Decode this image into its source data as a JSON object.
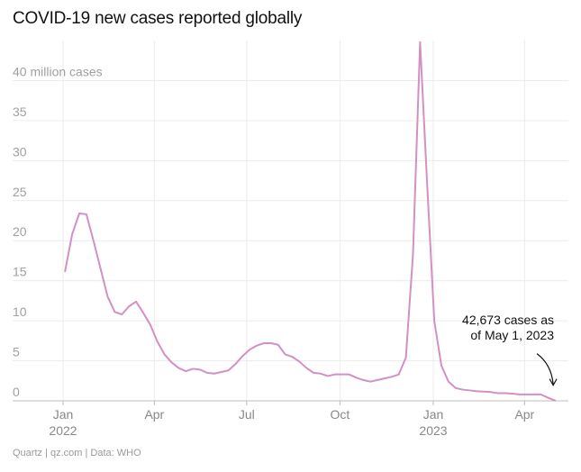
{
  "title": "COVID-19 new cases reported globally",
  "source": "Quartz | qz.com | Data: WHO",
  "chart_data": {
    "type": "line",
    "title": "COVID-19 new cases reported globally",
    "y_unit_label": "40 million cases",
    "y_ticks": [
      0,
      5,
      10,
      15,
      20,
      25,
      30,
      35,
      40
    ],
    "y_tick_labels": [
      "0",
      "5",
      "10",
      "15",
      "20",
      "25",
      "30",
      "35",
      "40 million cases"
    ],
    "ylim": [
      0,
      45
    ],
    "xlim": [
      "2022-01-01",
      "2023-05-08"
    ],
    "x_ticks": [
      {
        "date": "2022-01-01",
        "label": "Jan",
        "sublabel": "2022"
      },
      {
        "date": "2022-04-01",
        "label": "Apr",
        "sublabel": ""
      },
      {
        "date": "2022-07-01",
        "label": "Jul",
        "sublabel": ""
      },
      {
        "date": "2022-10-01",
        "label": "Oct",
        "sublabel": ""
      },
      {
        "date": "2023-01-01",
        "label": "Jan",
        "sublabel": "2023"
      },
      {
        "date": "2023-04-01",
        "label": "Apr",
        "sublabel": ""
      }
    ],
    "grid": true,
    "line_color": "#d48fc4",
    "series": [
      {
        "name": "",
        "x": [
          "2022-01-03",
          "2022-01-10",
          "2022-01-17",
          "2022-01-24",
          "2022-01-31",
          "2022-02-07",
          "2022-02-14",
          "2022-02-21",
          "2022-02-28",
          "2022-03-07",
          "2022-03-14",
          "2022-03-21",
          "2022-03-28",
          "2022-04-04",
          "2022-04-11",
          "2022-04-18",
          "2022-04-25",
          "2022-05-02",
          "2022-05-09",
          "2022-05-16",
          "2022-05-23",
          "2022-05-30",
          "2022-06-06",
          "2022-06-13",
          "2022-06-20",
          "2022-06-27",
          "2022-07-04",
          "2022-07-11",
          "2022-07-18",
          "2022-07-25",
          "2022-08-01",
          "2022-08-08",
          "2022-08-15",
          "2022-08-22",
          "2022-08-29",
          "2022-09-05",
          "2022-09-12",
          "2022-09-19",
          "2022-09-26",
          "2022-10-03",
          "2022-10-10",
          "2022-10-17",
          "2022-10-24",
          "2022-10-31",
          "2022-11-07",
          "2022-11-14",
          "2022-11-21",
          "2022-11-28",
          "2022-12-05",
          "2022-12-12",
          "2022-12-19",
          "2022-12-26",
          "2023-01-02",
          "2023-01-09",
          "2023-01-16",
          "2023-01-23",
          "2023-01-30",
          "2023-02-06",
          "2023-02-13",
          "2023-02-20",
          "2023-02-27",
          "2023-03-06",
          "2023-03-13",
          "2023-03-20",
          "2023-03-27",
          "2023-04-03",
          "2023-04-10",
          "2023-04-17",
          "2023-04-24",
          "2023-05-01"
        ],
        "values": [
          16.2,
          20.8,
          23.4,
          23.3,
          20.0,
          16.5,
          13.0,
          11.1,
          10.8,
          11.8,
          12.4,
          11.0,
          9.5,
          7.4,
          5.8,
          4.8,
          4.1,
          3.7,
          4.0,
          3.9,
          3.5,
          3.4,
          3.6,
          3.8,
          4.6,
          5.6,
          6.4,
          6.9,
          7.2,
          7.2,
          7.0,
          5.8,
          5.5,
          4.9,
          4.1,
          3.5,
          3.4,
          3.1,
          3.3,
          3.3,
          3.3,
          2.9,
          2.6,
          2.4,
          2.6,
          2.8,
          3.0,
          3.3,
          5.4,
          18.3,
          44.8,
          27.0,
          10.0,
          4.4,
          2.4,
          1.6,
          1.4,
          1.3,
          1.2,
          1.15,
          1.1,
          0.95,
          0.95,
          0.9,
          0.8,
          0.8,
          0.8,
          0.8,
          0.4,
          0.04
        ]
      }
    ],
    "annotation": {
      "lines": [
        "42,673 cases as",
        "of May 1, 2023"
      ],
      "date": "2023-05-01",
      "value": 0.043
    }
  }
}
